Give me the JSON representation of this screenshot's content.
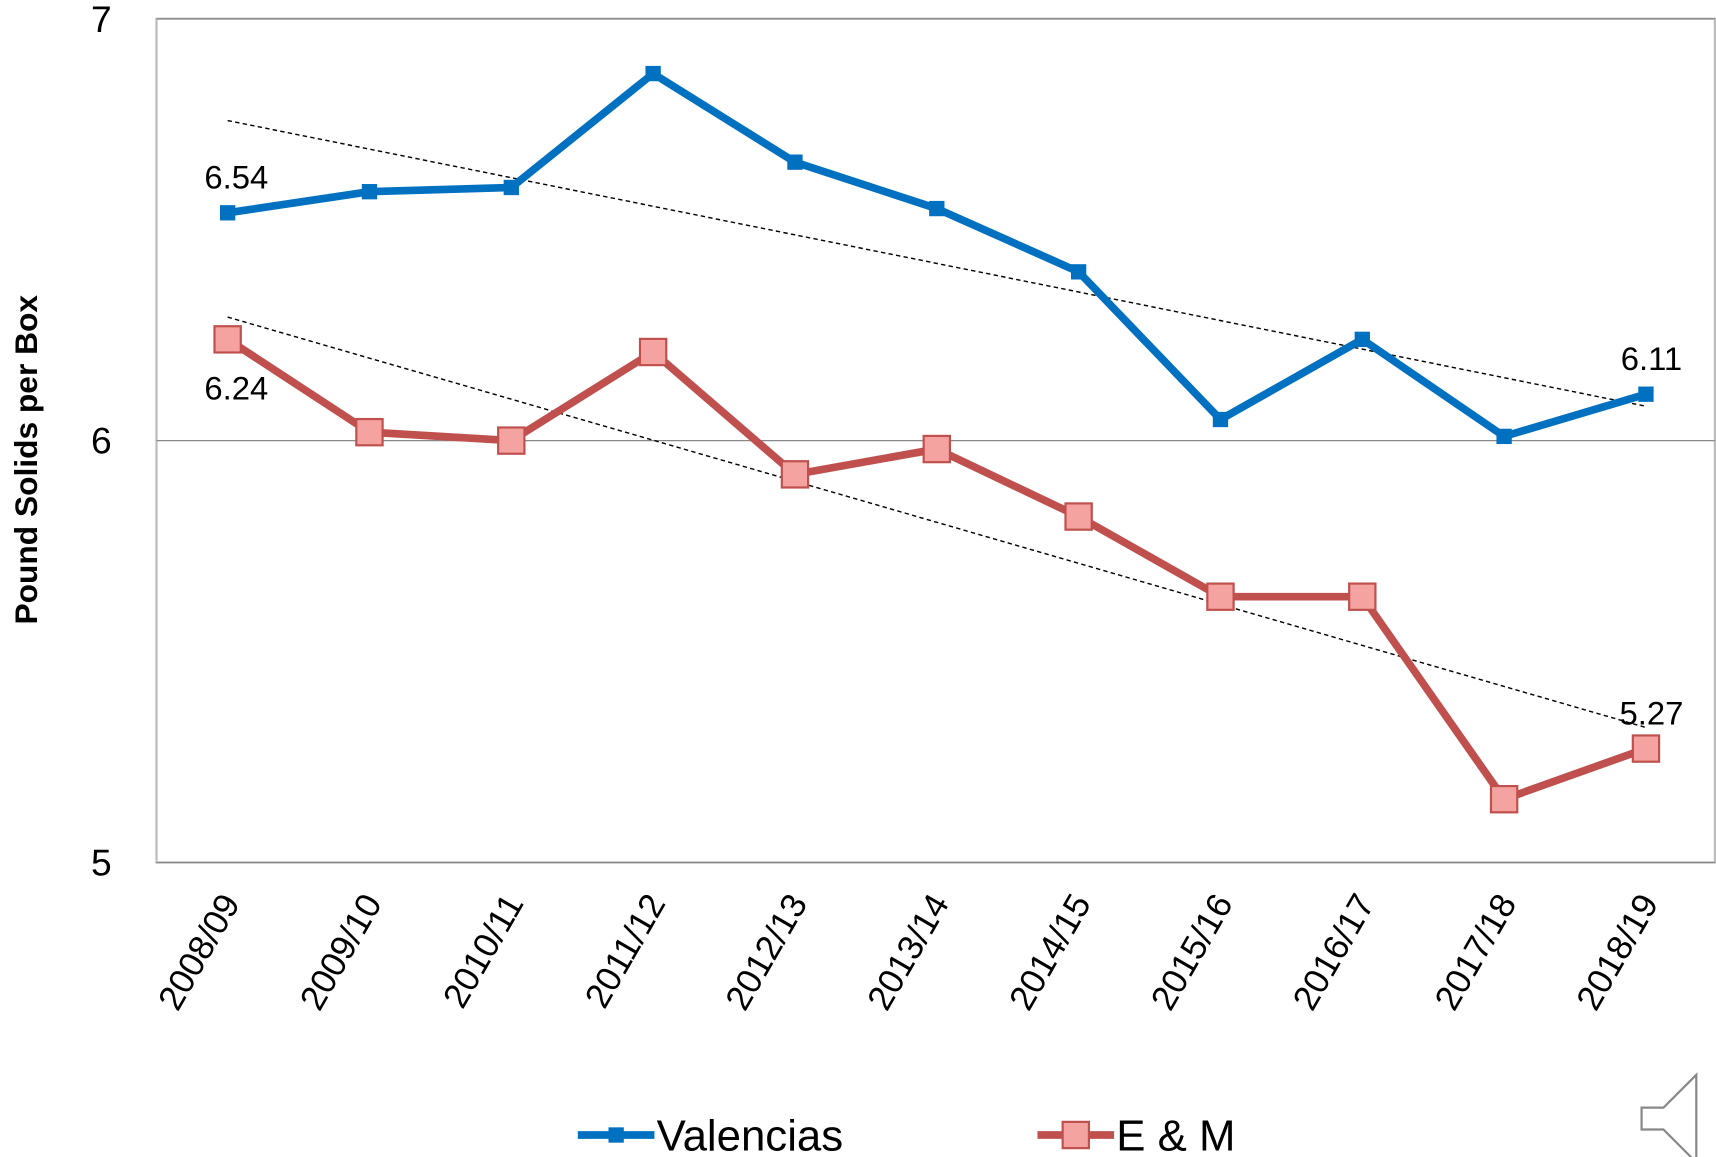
{
  "chart_data": {
    "type": "line",
    "y_label": "Pound Solids per Box",
    "categories": [
      "2008/09",
      "2009/10",
      "2010/11",
      "2011/12",
      "2012/13",
      "2013/14",
      "2014/15",
      "2015/16",
      "2016/17",
      "2017/18",
      "2018/19"
    ],
    "series": [
      {
        "name": "Valencias",
        "color": "#0070c0",
        "marker": "small-square",
        "values": [
          6.54,
          6.59,
          6.6,
          6.87,
          6.66,
          6.55,
          6.4,
          6.05,
          6.24,
          6.01,
          6.11
        ],
        "value_labels": [
          "6.54",
          null,
          null,
          null,
          null,
          null,
          null,
          null,
          null,
          null,
          "6.11"
        ]
      },
      {
        "name": "E & M",
        "color": "#c0504d",
        "marker": "large-square",
        "values": [
          6.24,
          6.02,
          6.0,
          6.21,
          5.92,
          5.98,
          5.82,
          5.63,
          5.63,
          5.15,
          5.27
        ],
        "value_labels": [
          "6.24",
          null,
          null,
          null,
          null,
          null,
          null,
          null,
          null,
          null,
          "5.27"
        ]
      }
    ],
    "ylim": [
      5,
      7
    ],
    "yticks": [
      5,
      6,
      7
    ],
    "grid": true,
    "trendline": true,
    "legend": "bottom"
  }
}
